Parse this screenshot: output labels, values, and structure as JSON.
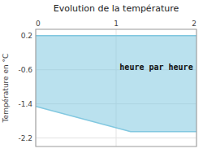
{
  "chart_data": {
    "type": "area",
    "title": "Evolution de la température",
    "y_label": "Température en °C",
    "x": [
      0,
      1.18,
      2
    ],
    "values": [
      -1.46,
      -2.05,
      -2.05
    ],
    "y_top": 0.2,
    "color": "#82c8e0",
    "xlim": [
      0,
      2
    ],
    "ylim": [
      -2.4,
      0.35
    ],
    "xticks": [
      0,
      1,
      2
    ],
    "yticks": [
      0.2,
      -0.6,
      -1.4,
      -2.2
    ],
    "grid": true,
    "annotation": {
      "text": "heure par heure",
      "x": 1.5,
      "y": -0.55
    }
  }
}
